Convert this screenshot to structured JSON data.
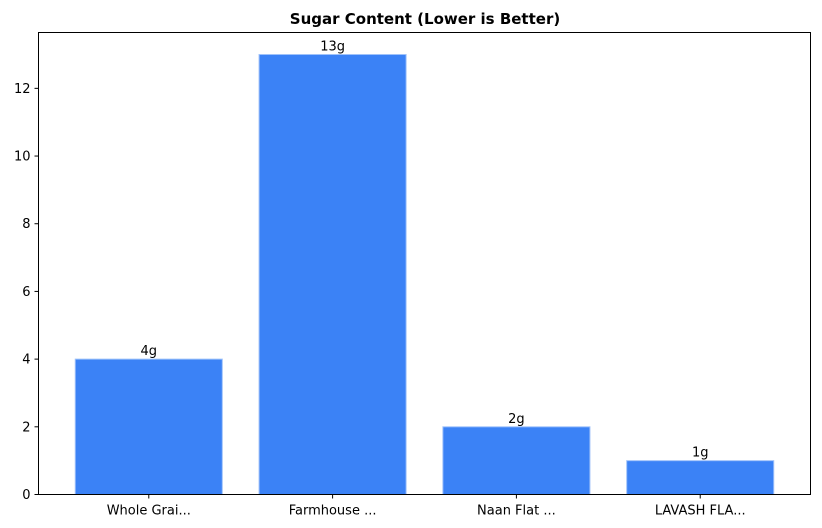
{
  "chart_data": {
    "type": "bar",
    "title": "Sugar Content (Lower is Better)",
    "xlabel": "",
    "ylabel": "",
    "categories": [
      "Whole Grai...",
      "Farmhouse ...",
      "Naan Flat ...",
      "LAVASH FLA..."
    ],
    "values": [
      4,
      13,
      2,
      1
    ],
    "data_labels": [
      "4g",
      "13g",
      "2g",
      "1g"
    ],
    "ylim": [
      0,
      13.65
    ],
    "yticks": [
      0,
      2,
      4,
      6,
      8,
      10,
      12
    ],
    "grid": false,
    "legend": "none",
    "colors": {
      "bar": "#3b82f6",
      "bar_edge": "#9fc2fa",
      "axis": "#000000"
    }
  }
}
